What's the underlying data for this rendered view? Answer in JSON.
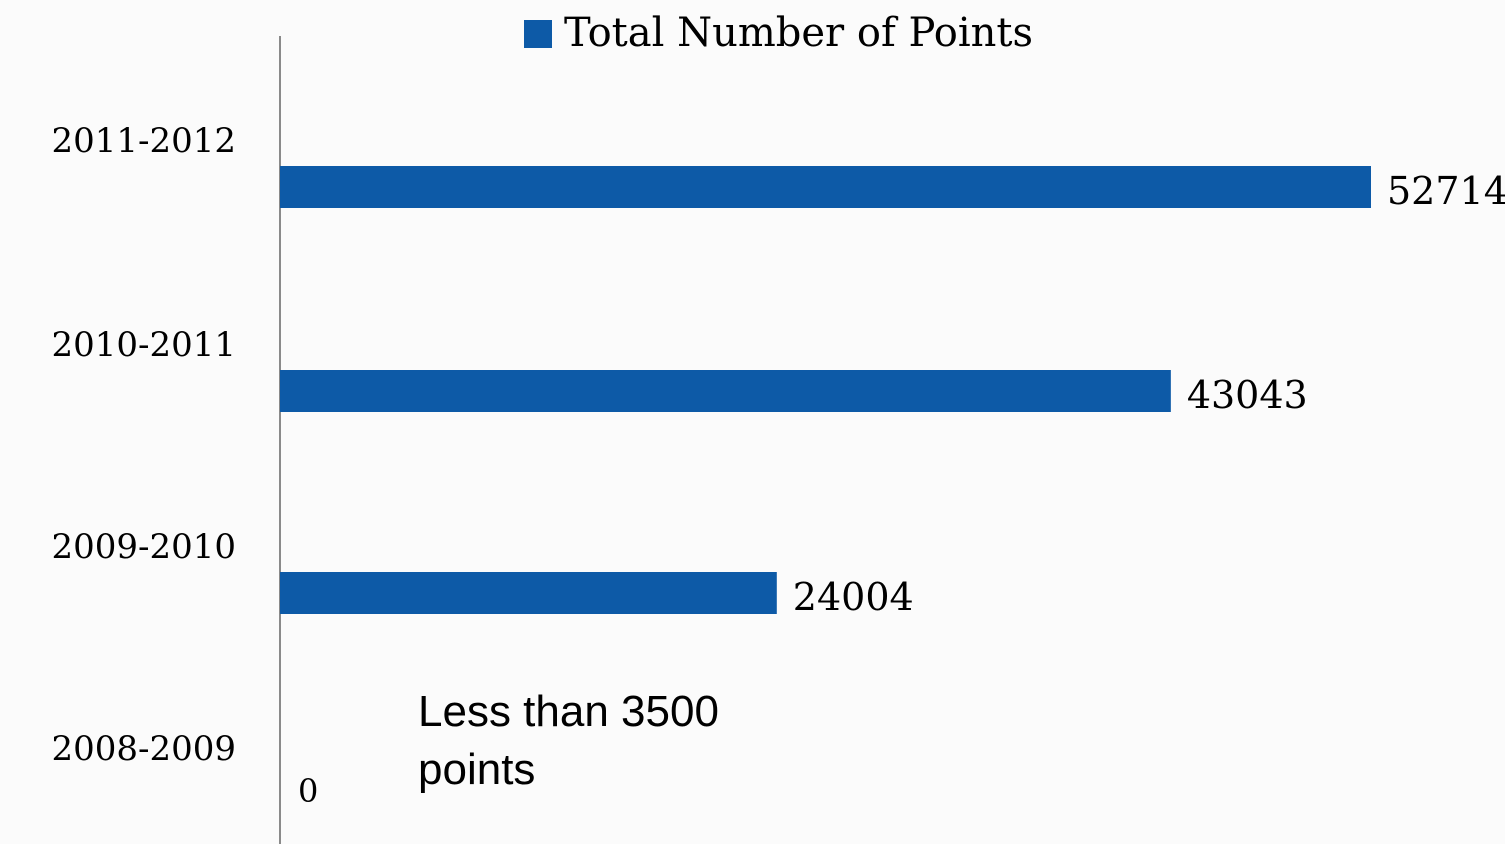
{
  "chart_data": {
    "type": "bar",
    "orientation": "horizontal",
    "categories": [
      "2011-2012",
      "2010-2011",
      "2009-2010",
      "2008-2009"
    ],
    "series": [
      {
        "name": "Total Number of Points",
        "values": [
          52714,
          43043,
          24004,
          0
        ],
        "labels": [
          "52714",
          "43043",
          "24004",
          "0"
        ],
        "color": "#0d5aa7"
      }
    ],
    "legend_position": "top",
    "xlim": [
      0,
      55000
    ],
    "grid": false,
    "annotation": {
      "line1": "Less than 3500",
      "line2": "points"
    }
  }
}
